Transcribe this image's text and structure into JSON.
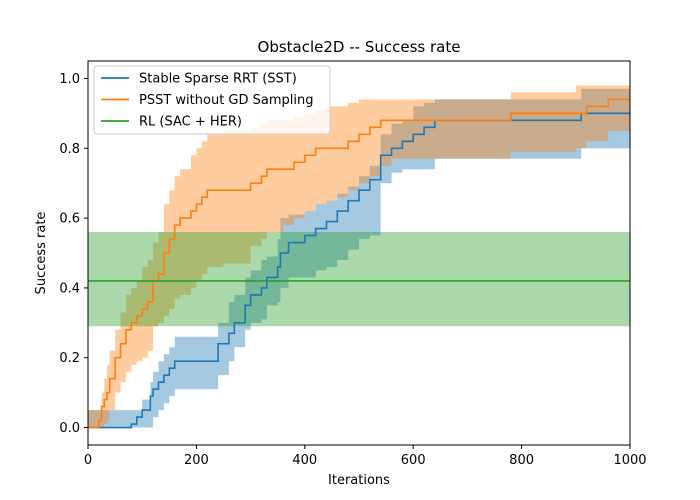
{
  "chart_data": {
    "type": "line",
    "title": "Obstacle2D -- Success rate",
    "xlabel": "Iterations",
    "ylabel": "Success rate",
    "xlim": [
      0,
      1000
    ],
    "ylim": [
      -0.05,
      1.05
    ],
    "xticks": [
      0,
      200,
      400,
      600,
      800,
      1000
    ],
    "xtick_labels": [
      "0",
      "200",
      "400",
      "600",
      "800",
      "1000"
    ],
    "yticks": [
      0.0,
      0.2,
      0.4,
      0.6,
      0.8,
      1.0
    ],
    "ytick_labels": [
      "0.0",
      "0.2",
      "0.4",
      "0.6",
      "0.8",
      "1.0"
    ],
    "grid": false,
    "legend_position": "upper-left",
    "series": [
      {
        "name": "Stable Sparse RRT (SST)",
        "color": "#1f77b4",
        "step": true,
        "x": [
          0,
          80,
          90,
          100,
          115,
          120,
          130,
          140,
          150,
          160,
          240,
          260,
          270,
          290,
          300,
          320,
          330,
          350,
          355,
          370,
          400,
          420,
          440,
          460,
          480,
          500,
          520,
          540,
          560,
          580,
          600,
          620,
          640,
          780,
          910,
          950,
          1000
        ],
        "y": [
          0.0,
          0.01,
          0.03,
          0.05,
          0.09,
          0.11,
          0.13,
          0.15,
          0.17,
          0.19,
          0.24,
          0.27,
          0.3,
          0.35,
          0.38,
          0.4,
          0.43,
          0.46,
          0.5,
          0.53,
          0.55,
          0.57,
          0.59,
          0.62,
          0.65,
          0.68,
          0.71,
          0.78,
          0.8,
          0.82,
          0.84,
          0.86,
          0.88,
          0.88,
          0.9,
          0.9,
          0.9
        ],
        "lower": [
          0.0,
          0.0,
          0.0,
          0.0,
          0.0,
          0.03,
          0.05,
          0.07,
          0.09,
          0.11,
          0.15,
          0.19,
          0.23,
          0.28,
          0.3,
          0.31,
          0.35,
          0.36,
          0.4,
          0.43,
          0.43,
          0.45,
          0.46,
          0.48,
          0.51,
          0.54,
          0.55,
          0.7,
          0.73,
          0.74,
          0.74,
          0.74,
          0.77,
          0.77,
          0.8,
          0.8,
          0.8
        ],
        "upper": [
          0.05,
          0.05,
          0.05,
          0.08,
          0.13,
          0.16,
          0.19,
          0.21,
          0.23,
          0.26,
          0.3,
          0.36,
          0.38,
          0.43,
          0.45,
          0.48,
          0.49,
          0.54,
          0.6,
          0.61,
          0.62,
          0.64,
          0.65,
          0.67,
          0.69,
          0.72,
          0.75,
          0.84,
          0.87,
          0.88,
          0.92,
          0.93,
          0.94,
          0.94,
          0.97,
          0.97,
          0.97
        ]
      },
      {
        "name": "PSST without GD Sampling",
        "color": "#ff7f0e",
        "step": true,
        "x": [
          0,
          20,
          25,
          30,
          35,
          40,
          50,
          60,
          70,
          80,
          90,
          100,
          110,
          120,
          130,
          140,
          150,
          160,
          170,
          190,
          200,
          210,
          220,
          250,
          300,
          320,
          330,
          360,
          380,
          400,
          420,
          440,
          460,
          480,
          500,
          520,
          540,
          560,
          600,
          640,
          680,
          780,
          900,
          920,
          960,
          1000
        ],
        "y": [
          0.0,
          0.02,
          0.06,
          0.08,
          0.1,
          0.14,
          0.2,
          0.24,
          0.28,
          0.3,
          0.32,
          0.34,
          0.36,
          0.42,
          0.44,
          0.5,
          0.54,
          0.58,
          0.6,
          0.62,
          0.64,
          0.66,
          0.68,
          0.68,
          0.7,
          0.72,
          0.74,
          0.74,
          0.76,
          0.78,
          0.8,
          0.8,
          0.8,
          0.82,
          0.84,
          0.86,
          0.88,
          0.88,
          0.88,
          0.88,
          0.88,
          0.9,
          0.9,
          0.92,
          0.94,
          0.94
        ],
        "lower": [
          0.0,
          0.0,
          0.0,
          0.01,
          0.02,
          0.05,
          0.1,
          0.13,
          0.16,
          0.18,
          0.19,
          0.2,
          0.22,
          0.29,
          0.3,
          0.32,
          0.34,
          0.37,
          0.38,
          0.4,
          0.42,
          0.44,
          0.46,
          0.47,
          0.52,
          0.54,
          0.56,
          0.58,
          0.6,
          0.62,
          0.64,
          0.65,
          0.66,
          0.68,
          0.7,
          0.72,
          0.75,
          0.77,
          0.77,
          0.77,
          0.77,
          0.79,
          0.8,
          0.82,
          0.85,
          0.85
        ],
        "upper": [
          0.05,
          0.05,
          0.1,
          0.14,
          0.18,
          0.22,
          0.28,
          0.33,
          0.38,
          0.4,
          0.42,
          0.46,
          0.48,
          0.53,
          0.56,
          0.64,
          0.68,
          0.72,
          0.74,
          0.78,
          0.8,
          0.82,
          0.84,
          0.85,
          0.86,
          0.87,
          0.88,
          0.88,
          0.89,
          0.9,
          0.91,
          0.92,
          0.92,
          0.93,
          0.94,
          0.94,
          0.94,
          0.94,
          0.94,
          0.94,
          0.94,
          0.96,
          0.98,
          0.98,
          0.98,
          0.98
        ]
      },
      {
        "name": "RL (SAC + HER)",
        "color": "#2ca02c",
        "step": false,
        "x": [
          0,
          1000
        ],
        "y": [
          0.42,
          0.42
        ],
        "lower": [
          0.29,
          0.29
        ],
        "upper": [
          0.56,
          0.56
        ]
      }
    ]
  }
}
